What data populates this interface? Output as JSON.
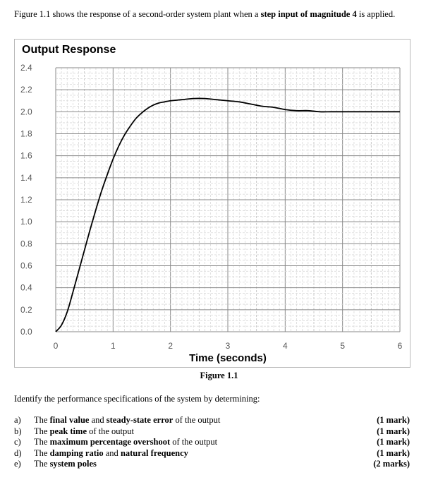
{
  "intro": {
    "part1": "Figure 1.1 shows the response of a second-order system plant when a ",
    "bold1": "step input of magnitude 4",
    "part2": " is applied."
  },
  "chart_data": {
    "type": "line",
    "title": "Output Response",
    "xlabel": "Time (seconds)",
    "ylabel": "",
    "xlim": [
      0,
      6
    ],
    "ylim": [
      0,
      2.4
    ],
    "x_ticks": [
      "0",
      "1",
      "2",
      "3",
      "4",
      "5",
      "6"
    ],
    "y_ticks": [
      "0.0",
      "0.2",
      "0.4",
      "0.6",
      "0.8",
      "1.0",
      "1.2",
      "1.4",
      "1.6",
      "1.8",
      "2.0",
      "2.2",
      "2.4"
    ],
    "grid": true,
    "series": [
      {
        "color": "#000000",
        "x": [
          0,
          0.1,
          0.2,
          0.3,
          0.4,
          0.5,
          0.6,
          0.7,
          0.8,
          0.9,
          1.0,
          1.1,
          1.2,
          1.3,
          1.4,
          1.5,
          1.6,
          1.7,
          1.8,
          1.9,
          2.0,
          2.2,
          2.4,
          2.6,
          2.8,
          3.0,
          3.2,
          3.4,
          3.6,
          3.8,
          4.0,
          4.2,
          4.4,
          4.6,
          4.8,
          5.0,
          5.2,
          5.4,
          5.6,
          5.8,
          6.0
        ],
        "y": [
          0.0,
          0.06,
          0.18,
          0.36,
          0.55,
          0.74,
          0.93,
          1.11,
          1.28,
          1.43,
          1.57,
          1.69,
          1.79,
          1.87,
          1.94,
          1.99,
          2.03,
          2.06,
          2.08,
          2.09,
          2.1,
          2.11,
          2.12,
          2.12,
          2.11,
          2.1,
          2.09,
          2.07,
          2.05,
          2.04,
          2.02,
          2.01,
          2.01,
          2.0,
          2.0,
          2.0,
          2.0,
          2.0,
          2.0,
          2.0,
          2.0
        ]
      }
    ]
  },
  "figure_caption": "Figure 1.1",
  "question_intro": "Identify the performance specifications of the system by determining:",
  "questions": [
    {
      "letter": "a)",
      "pre": "The ",
      "bold": "final value",
      "mid": " and ",
      "bold2": "steady-state error",
      "post": " of the output",
      "marks": "(1 mark)"
    },
    {
      "letter": "b)",
      "pre": "The ",
      "bold": "peak time",
      "mid": " of the output",
      "bold2": "",
      "post": "",
      "marks": "(1 mark)"
    },
    {
      "letter": "c)",
      "pre": "The ",
      "bold": "maximum percentage overshoot",
      "mid": " of the output",
      "bold2": "",
      "post": "",
      "marks": "(1 mark)"
    },
    {
      "letter": "d)",
      "pre": "The ",
      "bold": "damping ratio",
      "mid": " and ",
      "bold2": "natural frequency",
      "post": "",
      "marks": "(1 mark)"
    },
    {
      "letter": "e)",
      "pre": "The ",
      "bold": "system poles",
      "mid": "",
      "bold2": "",
      "post": "",
      "marks": "(2 marks)"
    }
  ]
}
